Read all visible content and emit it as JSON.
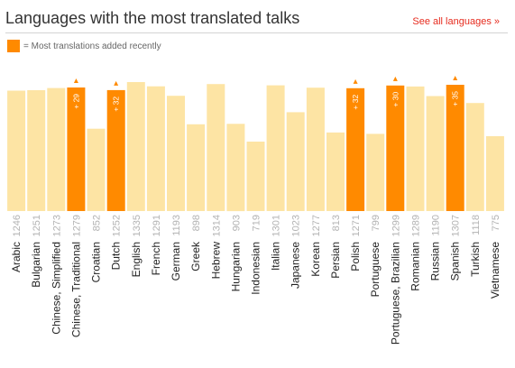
{
  "header": {
    "title": "Languages with the most translated talks",
    "see_all_label": "See all languages »"
  },
  "legend": {
    "label": "= Most translations added recently"
  },
  "colors": {
    "bar": "#fde4a4",
    "highlight": "#ff8a00",
    "link": "#e62b1e"
  },
  "chart_data": {
    "type": "bar",
    "title": "Languages with the most translated talks",
    "categories": [
      "Arabic",
      "Bulgarian",
      "Chinese, Simplified",
      "Chinese, Traditional",
      "Croatian",
      "Dutch",
      "English",
      "French",
      "German",
      "Greek",
      "Hebrew",
      "Hungarian",
      "Indonesian",
      "Italian",
      "Japanese",
      "Korean",
      "Persian",
      "Polish",
      "Portuguese",
      "Portuguese, Brazilian",
      "Romanian",
      "Russian",
      "Spanish",
      "Turkish",
      "Vietnamese"
    ],
    "values": [
      1246,
      1251,
      1273,
      1279,
      852,
      1252,
      1335,
      1291,
      1193,
      898,
      1314,
      903,
      719,
      1301,
      1023,
      1277,
      813,
      1271,
      799,
      1299,
      1289,
      1190,
      1307,
      1118,
      775
    ],
    "highlighted": [
      "Chinese, Traditional",
      "Dutch",
      "Polish",
      "Portuguese, Brazilian",
      "Spanish"
    ],
    "recently_added": {
      "Chinese, Traditional": "+ 29",
      "Dutch": "+ 32",
      "Polish": "+ 32",
      "Portuguese, Brazilian": "+ 30",
      "Spanish": "+ 35"
    },
    "xlabel": "",
    "ylabel": "",
    "ylim": [
      0,
      1400
    ],
    "grid": false
  }
}
